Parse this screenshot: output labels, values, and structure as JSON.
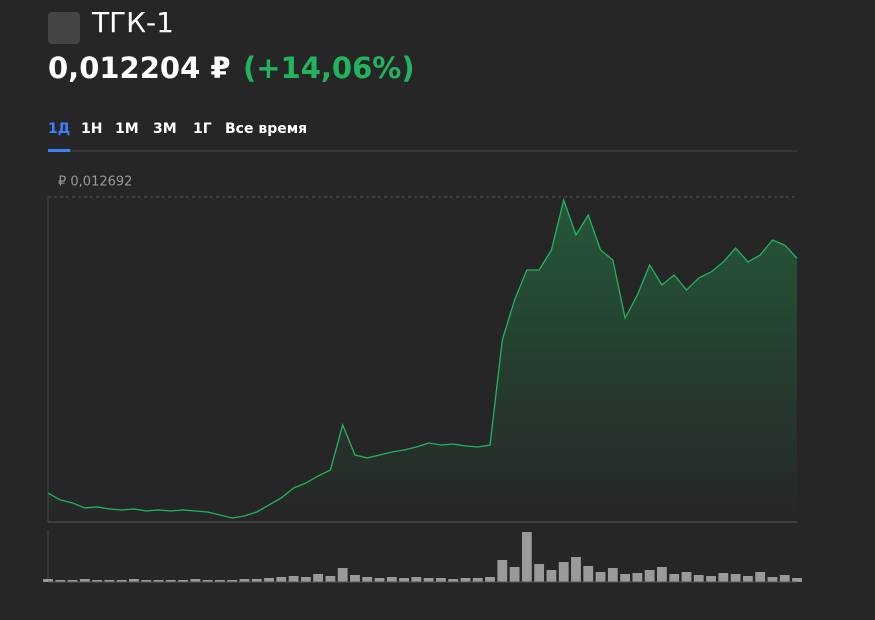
{
  "header": {
    "title": "ТГК-1",
    "price": "0,012204 ₽",
    "change": "(+14,06%)"
  },
  "tabs": [
    "1Д",
    "1Н",
    "1М",
    "3М",
    "1Г",
    "Все время"
  ],
  "active_tab": 0,
  "chart_data": [
    {
      "type": "line",
      "color": "#22b35e",
      "ylim": [
        0.0101,
        0.012692
      ],
      "yticks": [
        {
          "value": 0.012692,
          "label": "₽ 0,012692"
        }
      ],
      "values": [
        0.010331,
        0.010276,
        0.010252,
        0.010212,
        0.01022,
        0.010204,
        0.010196,
        0.010204,
        0.010188,
        0.010196,
        0.010188,
        0.010196,
        0.010188,
        0.01018,
        0.010156,
        0.010132,
        0.010148,
        0.01018,
        0.010236,
        0.010292,
        0.010371,
        0.010411,
        0.010467,
        0.010515,
        0.010874,
        0.010634,
        0.010611,
        0.010634,
        0.010658,
        0.010674,
        0.010698,
        0.01073,
        0.010714,
        0.010722,
        0.010706,
        0.010698,
        0.010714,
        0.011552,
        0.011871,
        0.01211,
        0.01211,
        0.012269,
        0.012668,
        0.012389,
        0.012548,
        0.012269,
        0.01219,
        0.011727,
        0.01191,
        0.01215,
        0.01199,
        0.01207,
        0.01195,
        0.012046,
        0.012094,
        0.012174,
        0.012285,
        0.012174,
        0.012229,
        0.012349,
        0.012309,
        0.012204
      ]
    },
    {
      "type": "bar",
      "color": "#9a9a9a",
      "ylim": [
        0,
        52
      ],
      "values": [
        3,
        2,
        2,
        3,
        2,
        2,
        2,
        3,
        2,
        2,
        2,
        2,
        3,
        2,
        2,
        2,
        3,
        3,
        4,
        5,
        6,
        5,
        8,
        6,
        14,
        7,
        5,
        4,
        5,
        4,
        5,
        4,
        4,
        3,
        4,
        4,
        5,
        22,
        15,
        50,
        18,
        12,
        20,
        25,
        16,
        10,
        14,
        8,
        9,
        12,
        15,
        8,
        10,
        7,
        6,
        9,
        8,
        6,
        10,
        5,
        7,
        4
      ]
    }
  ]
}
